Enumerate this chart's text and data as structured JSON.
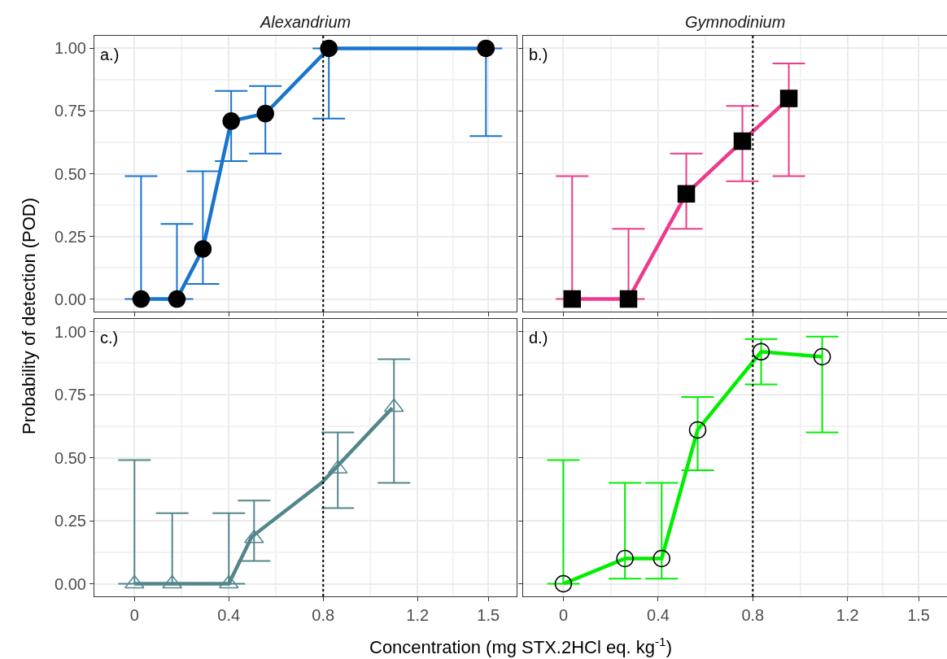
{
  "chart_data": [
    {
      "type": "line",
      "title": "Alexandrium",
      "ylabel": "Probability of detection (POD)",
      "annotations": [
        "a.)"
      ],
      "xlim": [
        -0.17,
        1.62
      ],
      "xticks": [
        0,
        0.4,
        0.8,
        1.2,
        1.5
      ],
      "ylim": [
        -0.05,
        1.05
      ],
      "yticks": [
        {
          "value": 0,
          "label": "0.00"
        },
        {
          "value": 0.25,
          "label": "0.25"
        },
        {
          "value": 0.5,
          "label": "0.50"
        },
        {
          "value": 0.75,
          "label": "0.75"
        },
        {
          "value": 1,
          "label": "1.00"
        }
      ],
      "tick_labels": "y",
      "grid": true,
      "marker": "circle",
      "line_style": "solid",
      "ref_lines": [
        {
          "axis": "x",
          "value": 0.8,
          "color": "#000000",
          "line_style": "dotted"
        }
      ],
      "series": [
        {
          "color": "#1874cd",
          "x": [
            0.028,
            0.18,
            0.29,
            0.41,
            0.555,
            0.824,
            1.49
          ],
          "values": [
            0,
            0,
            0.2,
            0.71,
            0.74,
            1,
            1
          ],
          "errors": [
            [
              0,
              0.49
            ],
            [
              0,
              0.3
            ],
            [
              0.06,
              0.51
            ],
            [
              0.55,
              0.83
            ],
            [
              0.58,
              0.85
            ],
            [
              0.72,
              1
            ],
            [
              0.65,
              1
            ]
          ]
        }
      ]
    },
    {
      "type": "line",
      "title": "Gymnodinium",
      "annotations": [
        "b.)"
      ],
      "xlim": [
        -0.17,
        1.62
      ],
      "xticks": [
        0,
        0.4,
        0.8,
        1.2,
        1.5
      ],
      "ylim": [
        -0.05,
        1.05
      ],
      "yticks": [
        {
          "value": 0,
          "label": null
        },
        {
          "value": 0.25,
          "label": null
        },
        {
          "value": 0.5,
          "label": null
        },
        {
          "value": 0.75,
          "label": null
        },
        {
          "value": 1,
          "label": null
        }
      ],
      "tick_labels": false,
      "grid": true,
      "marker": "square",
      "line_style": "solid",
      "ref_lines": [
        {
          "axis": "x",
          "value": 0.8,
          "color": "#000000",
          "line_style": "dotted"
        }
      ],
      "series": [
        {
          "color": "#ee3a8c",
          "x": [
            0.037,
            0.275,
            0.519,
            0.756,
            0.952
          ],
          "values": [
            0,
            0,
            0.42,
            0.63,
            0.8
          ],
          "errors": [
            [
              0,
              0.49
            ],
            [
              0,
              0.28
            ],
            [
              0.28,
              0.58
            ],
            [
              0.47,
              0.77
            ],
            [
              0.49,
              0.94
            ]
          ]
        }
      ]
    },
    {
      "type": "line",
      "xlabel": "Concentration (mg STX.2HCl eq. kg$^{-1}$)",
      "annotations": [
        "c.)"
      ],
      "xlim": [
        -0.17,
        1.62
      ],
      "xticks": [
        0,
        0.4,
        0.8,
        1.2,
        1.5
      ],
      "ylim": [
        -0.05,
        1.05
      ],
      "yticks": [
        {
          "value": 0,
          "label": "0.00"
        },
        {
          "value": 0.25,
          "label": "0.25"
        },
        {
          "value": 0.5,
          "label": "0.50"
        },
        {
          "value": 0.75,
          "label": "0.75"
        },
        {
          "value": 1,
          "label": "1.00"
        }
      ],
      "grid": true,
      "marker": "triangle-open",
      "line_style": "solid",
      "ref_lines": [
        {
          "axis": "x",
          "value": 0.8,
          "color": "#000000",
          "line_style": "dotted"
        }
      ],
      "series": [
        {
          "color": "#53868b",
          "marker": "none",
          "x": [
            0,
            0.4,
            0.497,
            0.793,
            1.093
          ],
          "values": [
            0,
            0,
            0.186,
            0.4,
            0.697
          ]
        },
        {
          "type": "scatter",
          "color": "#53868b",
          "x": [
            0,
            0.16,
            0.4,
            0.507,
            0.862,
            1.1
          ],
          "values": [
            0,
            0,
            0,
            0.18,
            0.456,
            0.7
          ],
          "errors": [
            [
              0,
              0.49
            ],
            [
              0,
              0.28
            ],
            [
              0,
              0.28
            ],
            [
              0.09,
              0.33
            ],
            [
              0.3,
              0.6
            ],
            [
              0.4,
              0.89
            ]
          ]
        }
      ]
    },
    {
      "type": "line",
      "annotations": [
        "d.)"
      ],
      "xlim": [
        -0.17,
        1.62
      ],
      "xticks": [
        0,
        0.4,
        0.8,
        1.2,
        1.5
      ],
      "ylim": [
        -0.05,
        1.05
      ],
      "yticks": [
        {
          "value": 0,
          "label": null
        },
        {
          "value": 0.25,
          "label": null
        },
        {
          "value": 0.5,
          "label": null
        },
        {
          "value": 0.75,
          "label": null
        },
        {
          "value": 1,
          "label": null
        }
      ],
      "tick_labels": "x",
      "grid": true,
      "marker": "circle-open",
      "line_style": "solid",
      "ref_lines": [
        {
          "axis": "x",
          "value": 0.8,
          "color": "#000000",
          "line_style": "dotted"
        }
      ],
      "series": [
        {
          "color": "#00ee00",
          "x": [
            0,
            0.26,
            0.415,
            0.567,
            0.835,
            1.093
          ],
          "values": [
            0,
            0.1,
            0.1,
            0.61,
            0.92,
            0.9
          ],
          "errors": [
            [
              0,
              0.49
            ],
            [
              0.02,
              0.4
            ],
            [
              0.02,
              0.4
            ],
            [
              0.45,
              0.74
            ],
            [
              0.79,
              0.97
            ],
            [
              0.6,
              0.98
            ]
          ]
        }
      ]
    }
  ]
}
